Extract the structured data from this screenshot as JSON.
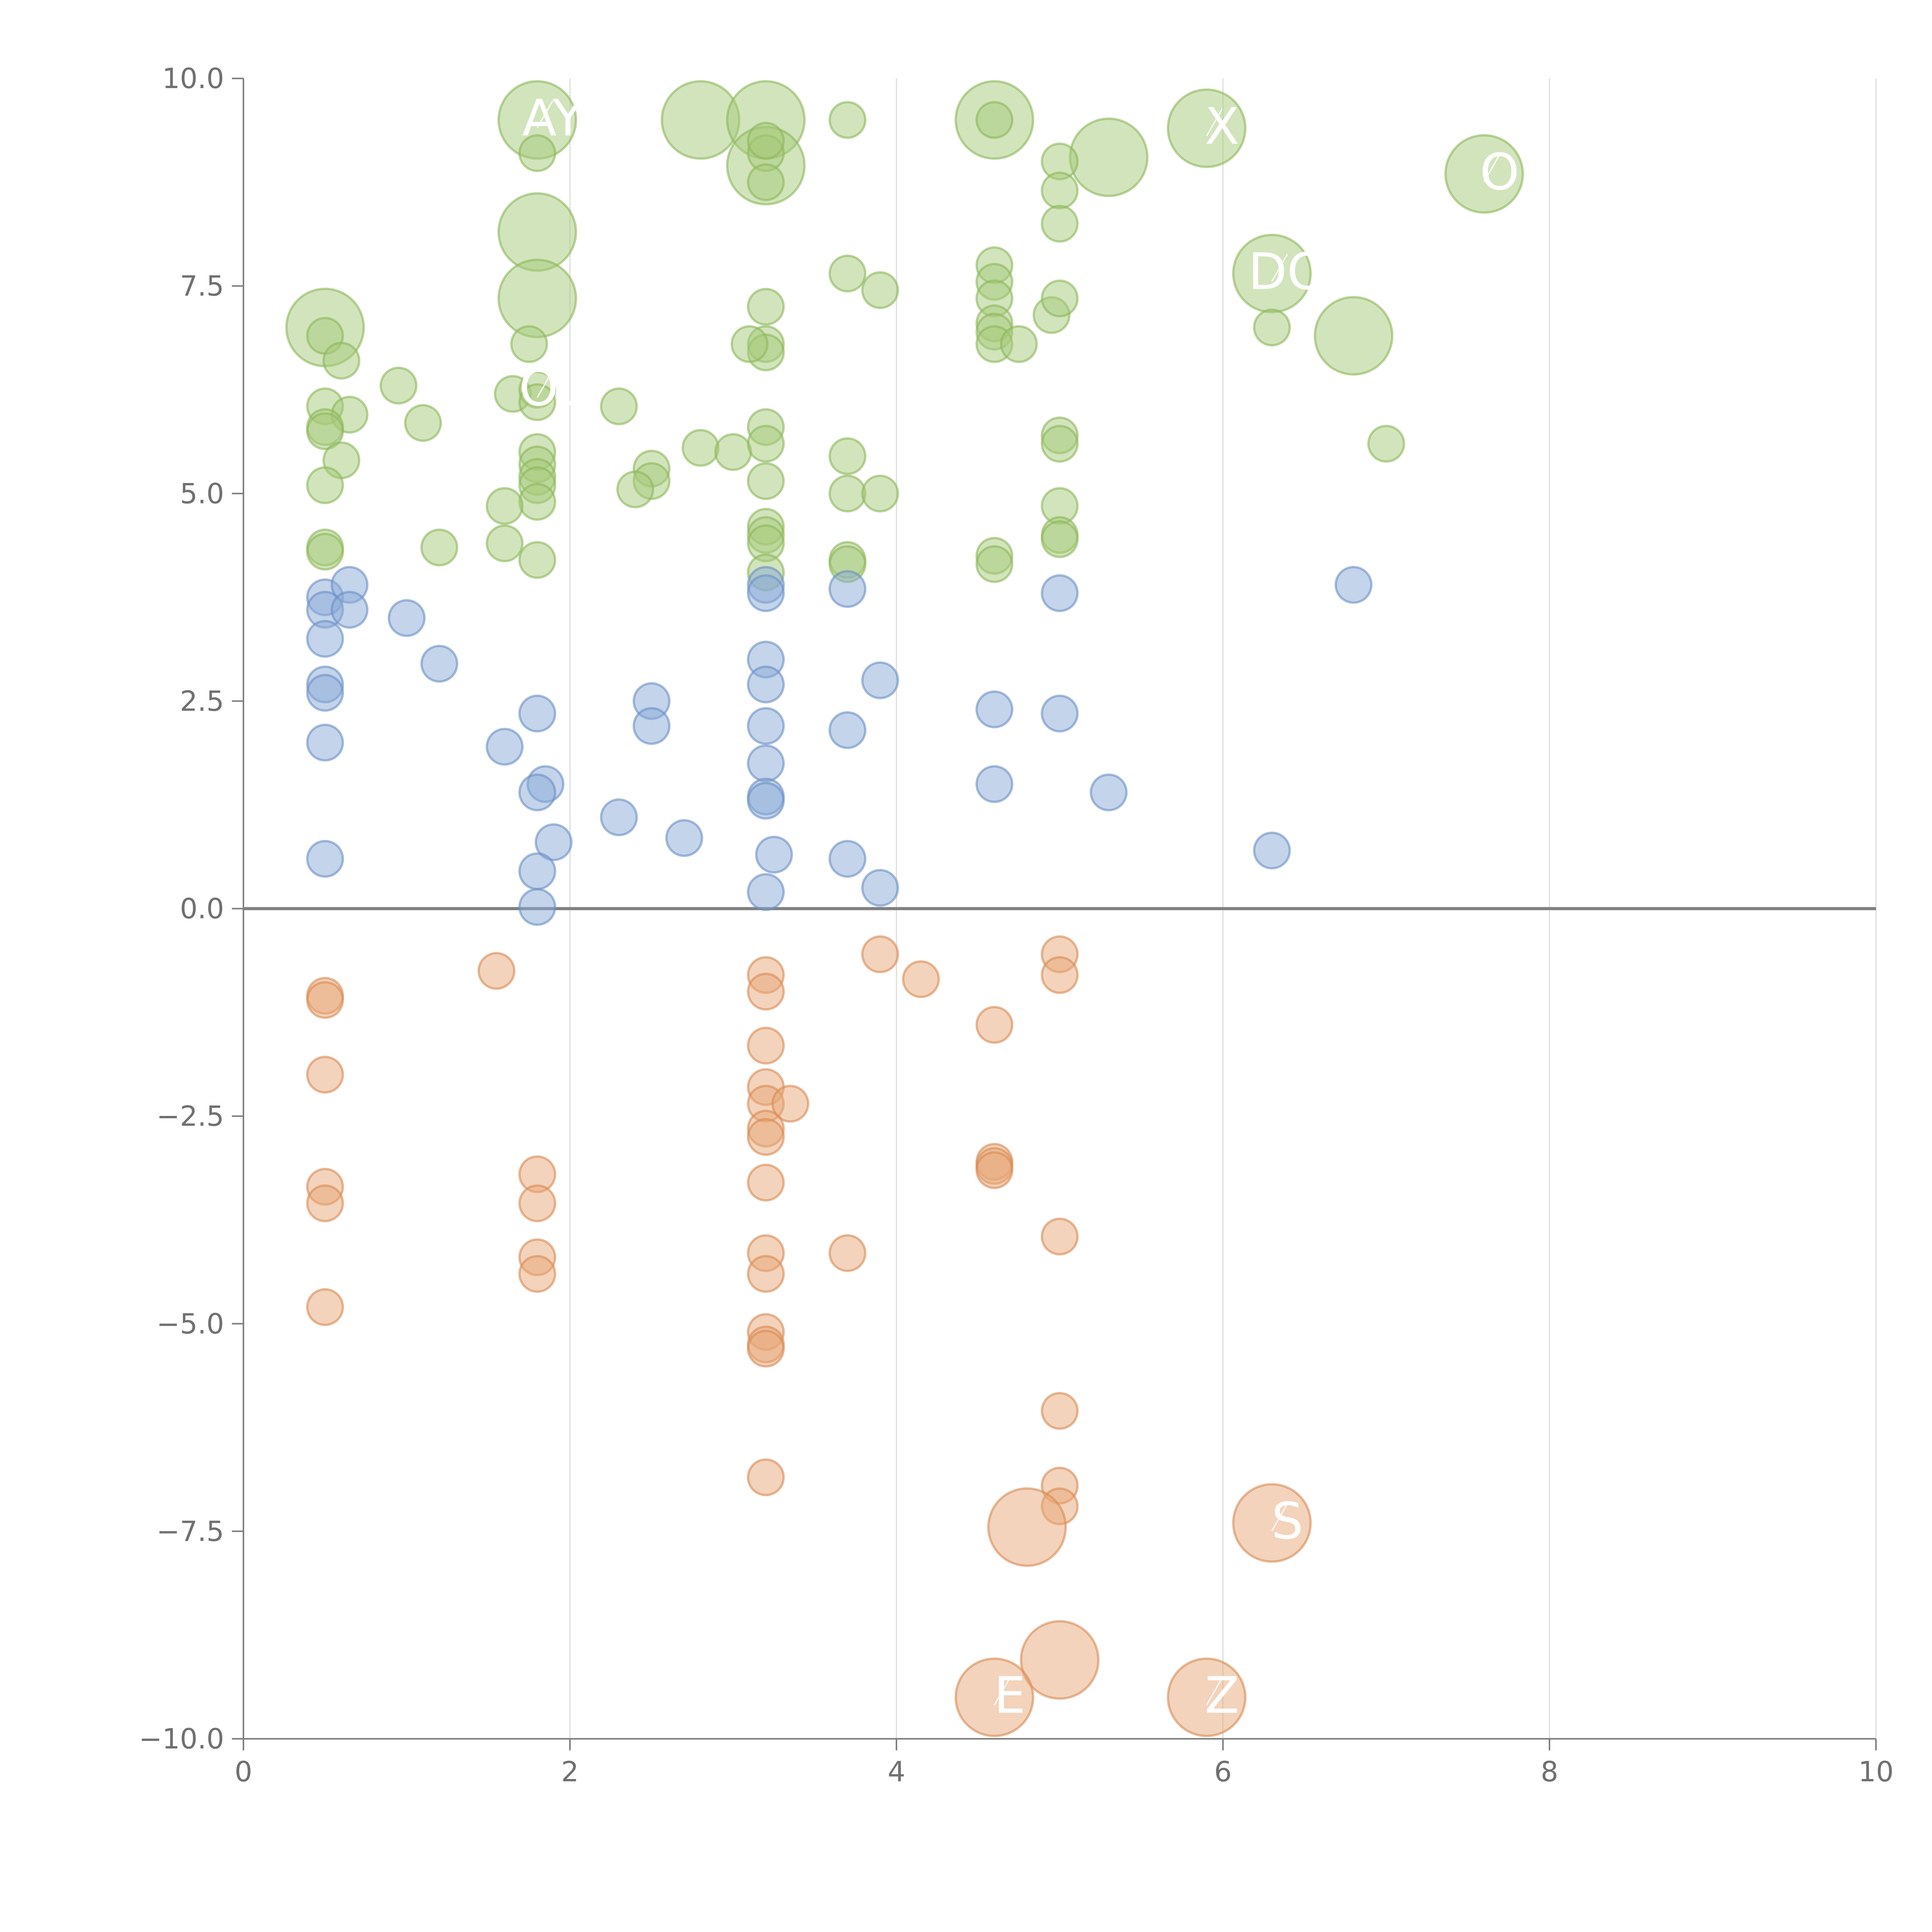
{
  "chart_data": {
    "type": "scatter",
    "title": "",
    "xlabel": "",
    "ylabel": "",
    "xlim": [
      0,
      10
    ],
    "ylim": [
      -10,
      10
    ],
    "grid": "x-only",
    "x_ticks": [
      0,
      2,
      4,
      6,
      8,
      10
    ],
    "x_tick_labels": [
      "0",
      "2",
      "4",
      "6",
      "8",
      "10"
    ],
    "y_ticks": [
      10,
      7.5,
      5,
      2.5,
      0,
      -2.5,
      -5,
      -7.5,
      -10
    ],
    "y_tick_labels": [
      "10.0",
      "7.5",
      "5.0",
      "2.5",
      "0.0",
      "−2.5",
      "−5.0",
      "−7.5",
      "−10.0"
    ],
    "series": [
      {
        "name": "green",
        "color": "#a6c97a",
        "stroke": "#8cb85a",
        "points": [
          [
            0.5,
            7.0,
            2
          ],
          [
            1.8,
            9.5,
            2
          ],
          [
            2.8,
            9.5,
            2
          ],
          [
            3.2,
            9.5,
            2
          ],
          [
            3.2,
            8.95,
            2
          ],
          [
            4.6,
            9.5,
            2
          ],
          [
            5.9,
            9.4,
            2
          ],
          [
            5.3,
            9.05,
            2
          ],
          [
            7.6,
            8.85,
            2
          ],
          [
            1.8,
            8.15,
            2
          ],
          [
            1.8,
            7.35,
            2
          ],
          [
            6.3,
            7.65,
            2
          ],
          [
            6.8,
            6.9,
            2
          ],
          [
            1.8,
            9.1,
            1
          ],
          [
            3.2,
            9.1,
            1
          ],
          [
            3.2,
            8.75,
            1
          ],
          [
            3.2,
            9.25,
            1
          ],
          [
            3.7,
            9.5,
            1
          ],
          [
            4.6,
            9.5,
            1
          ],
          [
            5.0,
            9.0,
            1
          ],
          [
            5.0,
            8.65,
            1
          ],
          [
            5.0,
            8.25,
            1
          ],
          [
            3.7,
            7.65,
            1
          ],
          [
            3.9,
            7.45,
            1
          ],
          [
            4.6,
            7.75,
            1
          ],
          [
            4.6,
            7.55,
            1
          ],
          [
            4.6,
            7.35,
            1
          ],
          [
            4.6,
            7.05,
            1
          ],
          [
            4.6,
            6.95,
            1
          ],
          [
            4.6,
            6.8,
            1
          ],
          [
            4.75,
            6.8,
            1
          ],
          [
            4.95,
            7.15,
            1
          ],
          [
            5.0,
            7.35,
            1
          ],
          [
            3.2,
            7.25,
            1
          ],
          [
            3.2,
            6.8,
            1
          ],
          [
            3.2,
            6.7,
            1
          ],
          [
            3.1,
            6.8,
            1
          ],
          [
            1.75,
            6.8,
            1
          ],
          [
            0.5,
            6.9,
            1
          ],
          [
            0.6,
            6.6,
            1
          ],
          [
            0.95,
            6.3,
            1
          ],
          [
            0.5,
            6.05,
            1
          ],
          [
            0.65,
            5.95,
            1
          ],
          [
            1.1,
            5.85,
            1
          ],
          [
            0.5,
            5.8,
            1
          ],
          [
            0.5,
            5.75,
            1
          ],
          [
            1.65,
            6.2,
            1
          ],
          [
            1.8,
            6.25,
            1
          ],
          [
            1.8,
            6.1,
            1
          ],
          [
            6.3,
            7.0,
            1
          ],
          [
            2.3,
            6.05,
            1
          ],
          [
            0.6,
            5.4,
            1
          ],
          [
            0.5,
            5.1,
            1
          ],
          [
            1.8,
            5.5,
            1
          ],
          [
            1.8,
            5.35,
            1
          ],
          [
            1.8,
            5.2,
            1
          ],
          [
            1.8,
            5.1,
            1
          ],
          [
            1.8,
            4.9,
            1
          ],
          [
            1.6,
            4.85,
            1
          ],
          [
            2.5,
            5.3,
            1
          ],
          [
            2.5,
            5.15,
            1
          ],
          [
            2.4,
            5.05,
            1
          ],
          [
            2.8,
            5.55,
            1
          ],
          [
            3.0,
            5.5,
            1
          ],
          [
            3.2,
            5.8,
            1
          ],
          [
            3.2,
            5.6,
            1
          ],
          [
            3.2,
            5.15,
            1
          ],
          [
            3.7,
            5.45,
            1
          ],
          [
            3.7,
            5.0,
            1
          ],
          [
            3.9,
            5.0,
            1
          ],
          [
            5.0,
            5.7,
            1
          ],
          [
            5.0,
            5.6,
            1
          ],
          [
            7.0,
            5.6,
            1
          ],
          [
            5.0,
            4.85,
            1
          ],
          [
            5.0,
            4.5,
            1
          ],
          [
            5.0,
            4.45,
            1
          ],
          [
            0.5,
            4.35,
            1
          ],
          [
            0.5,
            4.3,
            1
          ],
          [
            1.2,
            4.35,
            1
          ],
          [
            1.6,
            4.4,
            1
          ],
          [
            1.8,
            4.2,
            1
          ],
          [
            3.2,
            4.6,
            1
          ],
          [
            3.2,
            4.5,
            1
          ],
          [
            3.2,
            4.4,
            1
          ],
          [
            3.2,
            4.05,
            1
          ],
          [
            3.7,
            4.2,
            1
          ],
          [
            3.7,
            4.15,
            1
          ],
          [
            4.6,
            4.25,
            1
          ],
          [
            4.6,
            4.15,
            1
          ]
        ]
      },
      {
        "name": "blue",
        "color": "#8aa9d6",
        "stroke": "#6a8fc6",
        "points": [
          [
            0.5,
            3.75,
            1
          ],
          [
            0.5,
            3.6,
            1
          ],
          [
            0.65,
            3.9,
            1
          ],
          [
            0.65,
            3.6,
            1
          ],
          [
            1.0,
            3.5,
            1
          ],
          [
            0.5,
            3.25,
            1
          ],
          [
            1.2,
            2.95,
            1
          ],
          [
            0.5,
            2.7,
            1
          ],
          [
            0.5,
            2.6,
            1
          ],
          [
            0.5,
            2.0,
            1
          ],
          [
            1.6,
            1.95,
            1
          ],
          [
            1.8,
            2.35,
            1
          ],
          [
            1.85,
            1.5,
            1
          ],
          [
            1.8,
            1.4,
            1
          ],
          [
            1.9,
            0.8,
            1
          ],
          [
            1.8,
            0.45,
            1
          ],
          [
            1.8,
            0.02,
            1
          ],
          [
            0.5,
            0.6,
            1
          ],
          [
            2.3,
            1.1,
            1
          ],
          [
            2.5,
            2.5,
            1
          ],
          [
            2.5,
            2.2,
            1
          ],
          [
            2.7,
            0.85,
            1
          ],
          [
            3.2,
            3.9,
            1
          ],
          [
            3.2,
            3.8,
            1
          ],
          [
            3.2,
            3.0,
            1
          ],
          [
            3.2,
            2.7,
            1
          ],
          [
            3.2,
            2.2,
            1
          ],
          [
            3.2,
            1.75,
            1
          ],
          [
            3.2,
            1.35,
            1
          ],
          [
            3.2,
            1.3,
            1
          ],
          [
            3.25,
            0.65,
            1
          ],
          [
            3.2,
            0.2,
            1
          ],
          [
            3.7,
            3.85,
            1
          ],
          [
            3.7,
            2.15,
            1
          ],
          [
            3.9,
            2.75,
            1
          ],
          [
            3.7,
            0.6,
            1
          ],
          [
            3.9,
            0.25,
            1
          ],
          [
            4.6,
            2.4,
            1
          ],
          [
            4.6,
            1.5,
            1
          ],
          [
            5.0,
            3.8,
            1
          ],
          [
            5.0,
            2.35,
            1
          ],
          [
            5.3,
            1.4,
            1
          ],
          [
            6.8,
            3.9,
            1
          ],
          [
            6.3,
            0.7,
            1
          ]
        ]
      },
      {
        "name": "orange",
        "color": "#e8a877",
        "stroke": "#d98a54",
        "points": [
          [
            0.5,
            -1.05,
            1
          ],
          [
            0.5,
            -1.1,
            1
          ],
          [
            0.5,
            -2.0,
            1
          ],
          [
            0.5,
            -3.35,
            1
          ],
          [
            0.5,
            -3.55,
            1
          ],
          [
            0.5,
            -4.8,
            1
          ],
          [
            1.55,
            -0.75,
            1
          ],
          [
            1.8,
            -3.2,
            1
          ],
          [
            1.8,
            -3.55,
            1
          ],
          [
            1.8,
            -4.2,
            1
          ],
          [
            1.8,
            -4.4,
            1
          ],
          [
            3.2,
            -0.8,
            1
          ],
          [
            3.2,
            -1.0,
            1
          ],
          [
            3.2,
            -1.65,
            1
          ],
          [
            3.2,
            -2.15,
            1
          ],
          [
            3.2,
            -2.35,
            1
          ],
          [
            3.35,
            -2.35,
            1
          ],
          [
            3.2,
            -2.65,
            1
          ],
          [
            3.2,
            -2.75,
            1
          ],
          [
            3.2,
            -3.3,
            1
          ],
          [
            3.2,
            -4.15,
            1
          ],
          [
            3.2,
            -4.4,
            1
          ],
          [
            3.2,
            -5.1,
            1
          ],
          [
            3.2,
            -5.25,
            1
          ],
          [
            3.2,
            -5.3,
            1
          ],
          [
            3.2,
            -6.85,
            1
          ],
          [
            3.7,
            -4.15,
            1
          ],
          [
            3.9,
            -0.55,
            1
          ],
          [
            4.15,
            -0.85,
            1
          ],
          [
            4.6,
            -1.4,
            1
          ],
          [
            4.6,
            -3.05,
            1
          ],
          [
            4.6,
            -3.1,
            1
          ],
          [
            4.6,
            -3.15,
            1
          ],
          [
            5.0,
            -0.55,
            1
          ],
          [
            5.0,
            -0.8,
            1
          ],
          [
            5.0,
            -3.95,
            1
          ],
          [
            5.0,
            -6.05,
            1
          ],
          [
            5.0,
            -6.95,
            1
          ],
          [
            5.0,
            -7.2,
            1
          ],
          [
            4.8,
            -7.45,
            2
          ],
          [
            6.3,
            -7.4,
            2
          ],
          [
            5.0,
            -9.05,
            2
          ],
          [
            4.6,
            -9.5,
            2
          ],
          [
            5.9,
            -9.5,
            2
          ]
        ]
      }
    ],
    "annotations": [
      {
        "text": "AY",
        "x": 1.8,
        "y": 9.5
      },
      {
        "text": "X",
        "x": 5.9,
        "y": 9.4
      },
      {
        "text": "O",
        "x": 7.6,
        "y": 8.85
      },
      {
        "text": "DO",
        "x": 6.3,
        "y": 7.65
      },
      {
        "text": "OL",
        "x": 1.8,
        "y": 6.25
      },
      {
        "text": "E",
        "x": 4.6,
        "y": -9.5
      },
      {
        "text": "Z",
        "x": 5.9,
        "y": -9.5
      },
      {
        "text": "S",
        "x": 6.3,
        "y": -7.4
      }
    ]
  }
}
